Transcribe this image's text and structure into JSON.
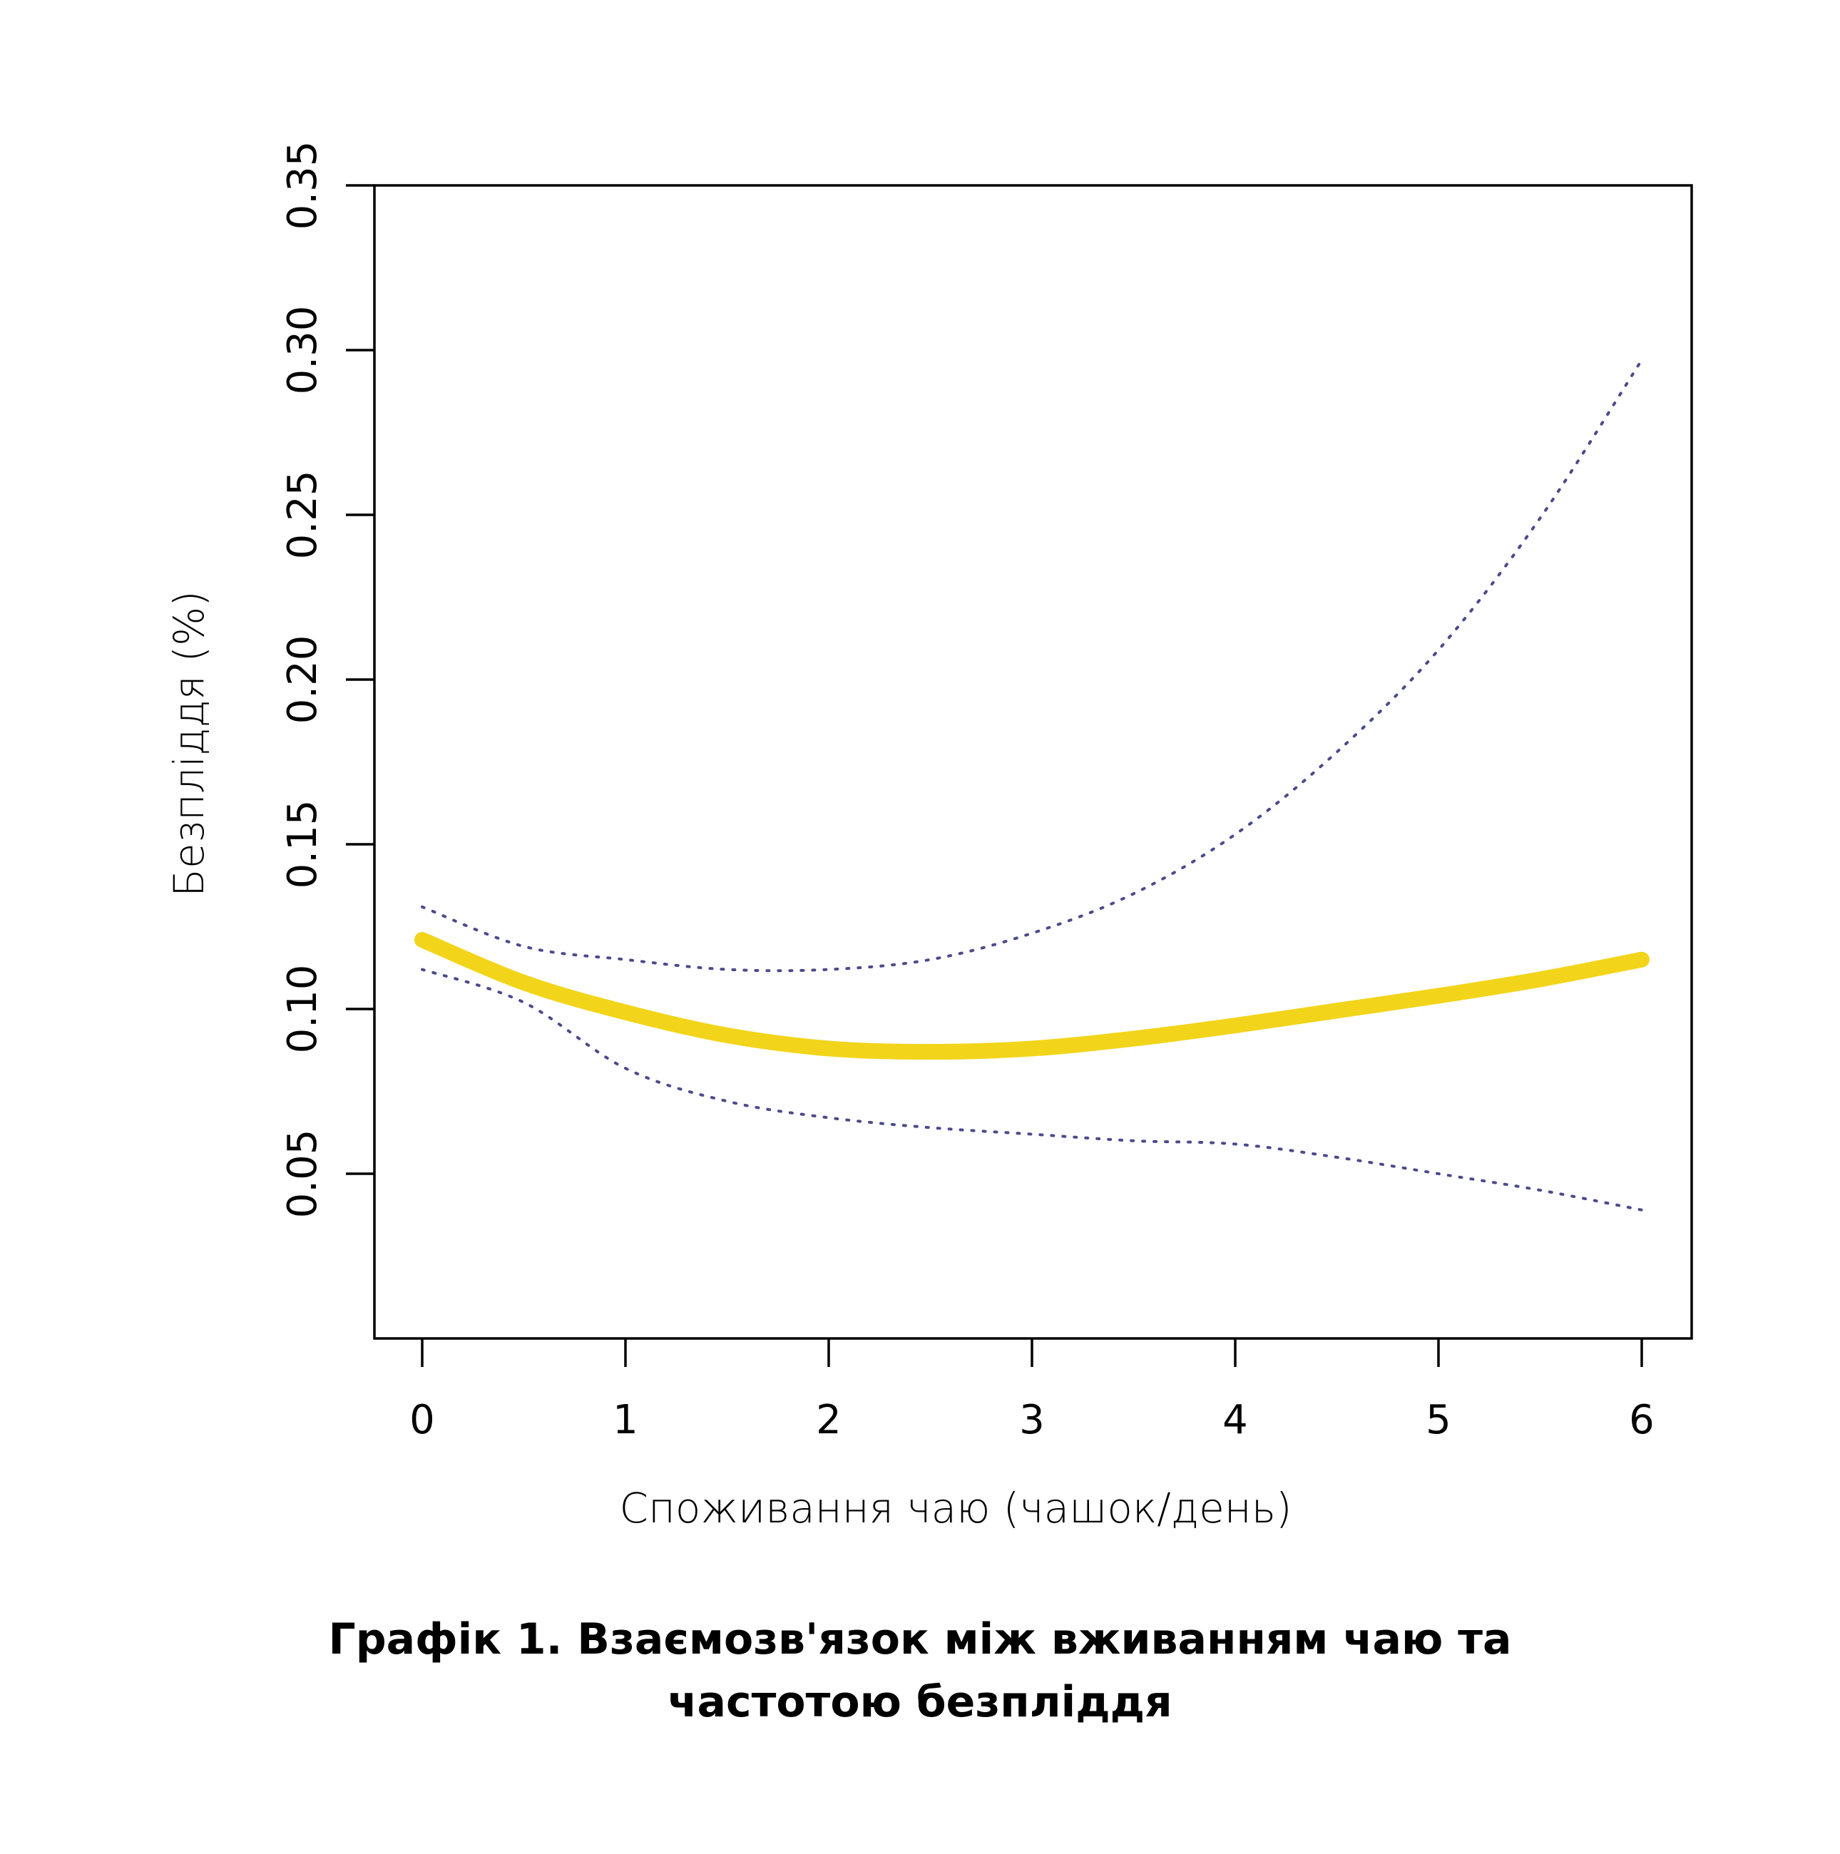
{
  "chart_data": {
    "type": "line",
    "xlabel": "Споживання чаю (чашок/день)",
    "ylabel": "Безпліддя (%)",
    "xlim": [
      0,
      6
    ],
    "ylim": [
      0.0,
      0.35
    ],
    "x_ticks": [
      0,
      1,
      2,
      3,
      4,
      5,
      6
    ],
    "y_ticks": [
      "0.05",
      "0.10",
      "0.15",
      "0.20",
      "0.25",
      "0.30",
      "0.35"
    ],
    "grid": false,
    "colors": {
      "estimate": "#f2d51a",
      "ci": "#4b4a8c",
      "axis": "#000000"
    },
    "series": [
      {
        "role": "estimate",
        "style": "solid-thick",
        "x": [
          0,
          0.5,
          1,
          1.5,
          2,
          2.5,
          3,
          3.5,
          4,
          4.5,
          5,
          5.5,
          6
        ],
        "y": [
          0.121,
          0.108,
          0.099,
          0.092,
          0.088,
          0.087,
          0.088,
          0.091,
          0.095,
          0.0995,
          0.104,
          0.109,
          0.115
        ]
      },
      {
        "role": "upper-ci",
        "style": "dotted",
        "x": [
          0,
          0.5,
          1,
          1.5,
          2,
          2.5,
          3,
          3.5,
          4,
          4.5,
          5,
          5.5,
          6
        ],
        "y": [
          0.131,
          0.119,
          0.115,
          0.112,
          0.112,
          0.115,
          0.123,
          0.135,
          0.153,
          0.178,
          0.209,
          0.249,
          0.297
        ]
      },
      {
        "role": "lower-ci",
        "style": "dotted",
        "x": [
          0,
          0.5,
          1,
          1.5,
          2,
          2.5,
          3,
          3.5,
          4,
          4.5,
          5,
          5.5,
          6
        ],
        "y": [
          0.112,
          0.102,
          0.082,
          0.072,
          0.067,
          0.064,
          0.062,
          0.06,
          0.059,
          0.055,
          0.05,
          0.045,
          0.039
        ]
      }
    ]
  },
  "caption": {
    "line1": "Графік 1. Взаємозв'язок між вживанням чаю та",
    "line2": "частотою безпліддя"
  }
}
